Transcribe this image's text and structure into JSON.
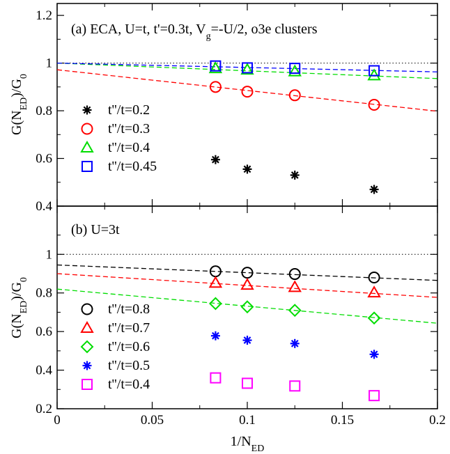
{
  "chart_data": [
    {
      "type": "scatter",
      "panel": "a",
      "annotation": "(a) ECA, U=t, t'=0.3t, V_g=-U/2, o3e clusters",
      "xlabel": "1/N_ED",
      "ylabel": "G(N_ED)/G_0",
      "xlim": [
        0,
        0.2
      ],
      "ylim": [
        0.4,
        1.25
      ],
      "x_ticks": [
        "0",
        "0.05",
        "0.1",
        "0.15",
        "0.2"
      ],
      "y_ticks": [
        "0.4",
        "0.6",
        "0.8",
        "1",
        "1.2"
      ],
      "x_tick_labels_shown": false,
      "reference_line_y": 1,
      "legend_position": "left",
      "series": [
        {
          "name": "t''/t=0.2",
          "marker": "star",
          "color": "#000000",
          "x": [
            0.0833,
            0.1,
            0.125,
            0.1667
          ],
          "y": [
            0.595,
            0.555,
            0.53,
            0.47
          ],
          "fit": null
        },
        {
          "name": "t''/t=0.3",
          "marker": "circle",
          "color": "#ff0000",
          "x": [
            0.0833,
            0.1,
            0.125,
            0.1667
          ],
          "y": [
            0.9,
            0.88,
            0.865,
            0.825
          ],
          "fit": {
            "y0": 0.972,
            "y1": 0.798
          }
        },
        {
          "name": "t''/t=0.4",
          "marker": "triangle",
          "color": "#00dd00",
          "x": [
            0.0833,
            0.1,
            0.125,
            0.1667
          ],
          "y": [
            0.978,
            0.972,
            0.965,
            0.948
          ],
          "fit": {
            "y0": 1.0,
            "y1": 0.935
          }
        },
        {
          "name": "t''/t=0.45",
          "marker": "square",
          "color": "#0000ff",
          "x": [
            0.0833,
            0.1,
            0.125,
            0.1667
          ],
          "y": [
            0.988,
            0.98,
            0.978,
            0.968
          ],
          "fit": {
            "y0": 1.0,
            "y1": 0.963
          }
        }
      ]
    },
    {
      "type": "scatter",
      "panel": "b",
      "annotation": "(b) U=3t",
      "xlabel": "1/N_ED",
      "ylabel": "G(N_ED)/G_0",
      "xlim": [
        0,
        0.2
      ],
      "ylim": [
        0.2,
        1.25
      ],
      "x_ticks": [
        "0",
        "0.05",
        "0.1",
        "0.15",
        "0.2"
      ],
      "y_ticks": [
        "0.2",
        "0.4",
        "0.6",
        "0.8",
        "1"
      ],
      "x_tick_labels_shown": true,
      "reference_line_y": 1,
      "legend_position": "bottom-left",
      "series": [
        {
          "name": "t''/t=0.8",
          "marker": "circle",
          "color": "#000000",
          "x": [
            0.0833,
            0.1,
            0.125,
            0.1667
          ],
          "y": [
            0.912,
            0.905,
            0.898,
            0.88
          ],
          "fit": {
            "y0": 0.945,
            "y1": 0.865
          }
        },
        {
          "name": "t''/t=0.7",
          "marker": "triangle",
          "color": "#ff0000",
          "x": [
            0.0833,
            0.1,
            0.125,
            0.1667
          ],
          "y": [
            0.852,
            0.842,
            0.83,
            0.802
          ],
          "fit": {
            "y0": 0.9,
            "y1": 0.777
          }
        },
        {
          "name": "t''/t=0.6",
          "marker": "diamond",
          "color": "#00dd00",
          "x": [
            0.0833,
            0.1,
            0.125,
            0.1667
          ],
          "y": [
            0.745,
            0.728,
            0.71,
            0.67
          ],
          "fit": {
            "y0": 0.82,
            "y1": 0.643
          }
        },
        {
          "name": "t''/t=0.5",
          "marker": "star",
          "color": "#0000ff",
          "x": [
            0.0833,
            0.1,
            0.125,
            0.1667
          ],
          "y": [
            0.578,
            0.555,
            0.538,
            0.482
          ],
          "fit": null
        },
        {
          "name": "t''/t=0.4",
          "marker": "square",
          "color": "#ff00ff",
          "x": [
            0.0833,
            0.1,
            0.125,
            0.1667
          ],
          "y": [
            0.36,
            0.332,
            0.318,
            0.268
          ],
          "fit": null
        }
      ]
    }
  ]
}
